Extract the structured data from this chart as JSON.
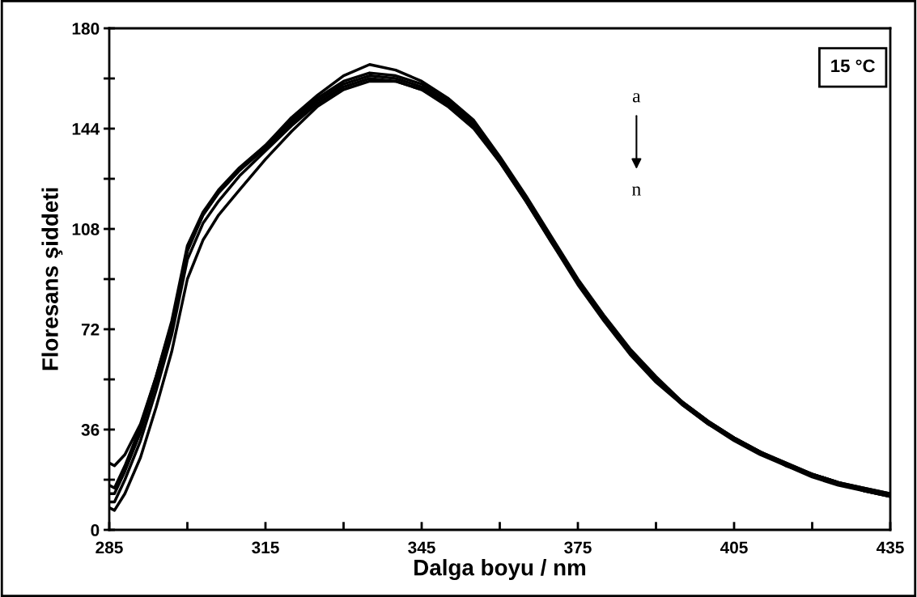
{
  "chart_data": {
    "type": "line",
    "xlabel": "Dalga boyu / nm",
    "ylabel": "Floresans şiddeti",
    "annotations": [
      "15 °C",
      "a",
      "n"
    ],
    "x": [
      285,
      286,
      288,
      291,
      294,
      297,
      300,
      303,
      306,
      310,
      315,
      320,
      325,
      330,
      335,
      340,
      345,
      350,
      355,
      360,
      365,
      370,
      375,
      380,
      385,
      390,
      395,
      400,
      405,
      410,
      415,
      420,
      425,
      430,
      435
    ],
    "series": [
      {
        "color": "#000000",
        "values": [
          24,
          23,
          27,
          38,
          55,
          74,
          100,
          113,
          121,
          129,
          138,
          148,
          156,
          163,
          167,
          165,
          161,
          155,
          147,
          134,
          120,
          105,
          90,
          77,
          65,
          55,
          46,
          39,
          33,
          28,
          24,
          20,
          17,
          15,
          13
        ]
      },
      {
        "color": "#000000",
        "values": [
          16,
          15,
          23,
          37,
          55,
          75,
          102,
          114,
          122,
          130,
          138,
          147,
          155,
          161,
          164,
          163,
          160,
          154,
          146,
          133,
          119,
          104,
          89,
          76,
          64,
          54,
          46,
          39,
          33,
          28,
          24,
          20,
          17,
          15,
          13
        ]
      },
      {
        "color": "#000000",
        "values": [
          13,
          13,
          21,
          35,
          53,
          73,
          101,
          113,
          121,
          129,
          137,
          146,
          154,
          160,
          163,
          162,
          159,
          153,
          145,
          133,
          119,
          104,
          89,
          76,
          64,
          54,
          46,
          39,
          33,
          28,
          23,
          20,
          17,
          14,
          12
        ]
      },
      {
        "color": "#000000",
        "values": [
          10,
          10,
          18,
          32,
          50,
          70,
          97,
          110,
          118,
          127,
          136,
          145,
          153,
          159,
          162,
          161,
          158,
          153,
          145,
          132,
          118,
          103,
          89,
          76,
          64,
          54,
          45,
          38,
          33,
          28,
          23,
          20,
          17,
          14,
          12
        ]
      },
      {
        "color": "#000000",
        "values": [
          8,
          7,
          13,
          26,
          44,
          64,
          90,
          104,
          113,
          122,
          133,
          143,
          152,
          158,
          161,
          161,
          158,
          152,
          144,
          132,
          118,
          103,
          88,
          75,
          63,
          53,
          45,
          38,
          32,
          27,
          23,
          19,
          16,
          14,
          12
        ]
      }
    ],
    "xlim": [
      285,
      435
    ],
    "xticks": [
      285,
      {
        "value": 300,
        "label": null
      },
      315,
      {
        "value": 330,
        "label": null
      },
      345,
      {
        "value": 360,
        "label": null
      },
      375,
      {
        "value": 390,
        "label": null
      },
      405,
      {
        "value": 420,
        "label": null
      },
      435
    ],
    "ylim": [
      0,
      180
    ],
    "yticks": [
      0,
      {
        "value": 18,
        "label": null
      },
      36,
      {
        "value": 54,
        "label": null
      },
      72,
      {
        "value": 90,
        "label": null
      },
      108,
      {
        "value": 126,
        "label": null
      },
      144,
      {
        "value": 162,
        "label": null
      },
      180
    ],
    "grid": false,
    "legend": false,
    "marker": "none",
    "line_style": "solid"
  }
}
